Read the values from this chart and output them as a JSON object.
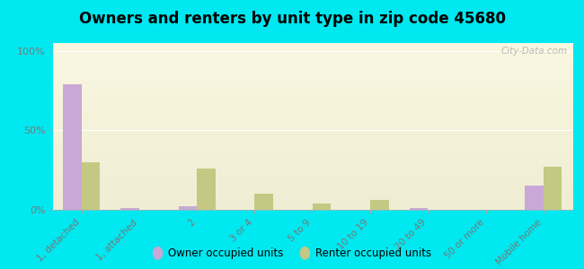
{
  "title": "Owners and renters by unit type in zip code 45680",
  "categories": [
    "1, detached",
    "1, attached",
    "2",
    "3 or 4",
    "5 to 9",
    "10 to 19",
    "20 to 49",
    "50 or more",
    "Mobile home"
  ],
  "owner_values": [
    79,
    1,
    2,
    0,
    0,
    0,
    1,
    0,
    15
  ],
  "renter_values": [
    30,
    0,
    26,
    10,
    4,
    6,
    0,
    0,
    27
  ],
  "owner_color": "#c9a8d8",
  "renter_color": "#c5c882",
  "fig_bg_color": "#00e8f0",
  "ylabel_ticks": [
    "0%",
    "50%",
    "100%"
  ],
  "yticks": [
    0,
    50,
    100
  ],
  "ylim": [
    0,
    105
  ],
  "bar_width": 0.32,
  "watermark": "City-Data.com",
  "legend_owner": "Owner occupied units",
  "legend_renter": "Renter occupied units",
  "grid_color": "#ffffff",
  "tick_color": "#777777",
  "title_fontsize": 12
}
